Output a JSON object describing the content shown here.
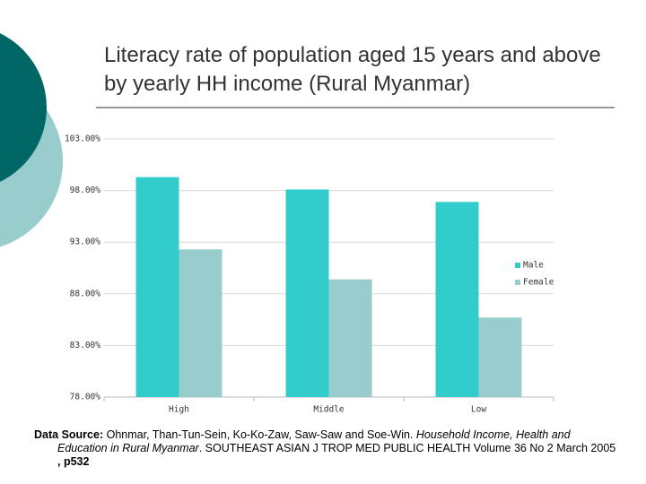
{
  "chart_data": {
    "type": "bar",
    "title": "Literacy rate of population aged 15 years and above by yearly HH income (Rural Myanmar)",
    "categories": [
      "High",
      "Middle",
      "Low"
    ],
    "series": [
      {
        "name": "Male",
        "color": "#33cccc",
        "values": [
          99.3,
          98.1,
          96.9
        ]
      },
      {
        "name": "Female",
        "color": "#99cccc",
        "values": [
          92.3,
          89.4,
          85.7
        ]
      }
    ],
    "ylim": [
      78,
      103
    ],
    "yticks": [
      {
        "value": 78,
        "label": "78.00%"
      },
      {
        "value": 83,
        "label": "83.00%"
      },
      {
        "value": 88,
        "label": "88.00%"
      },
      {
        "value": 93,
        "label": "93.00%"
      },
      {
        "value": 98,
        "label": "98.00%"
      },
      {
        "value": 103,
        "label": "103.00%"
      }
    ],
    "grid": true,
    "legend": "right"
  },
  "source": {
    "label": "Data Source:",
    "authors": "Ohnmar, Than-Tun-Sein, Ko-Ko-Zaw, Saw-Saw and Soe-Win.",
    "work": "Household Income, Health and Education in Rural Myanmar",
    "journal": ". SOUTHEAST ASIAN J TROP MED PUBLIC HEALTH Volume 36 No 2 March 2005",
    "page": ", p532"
  }
}
